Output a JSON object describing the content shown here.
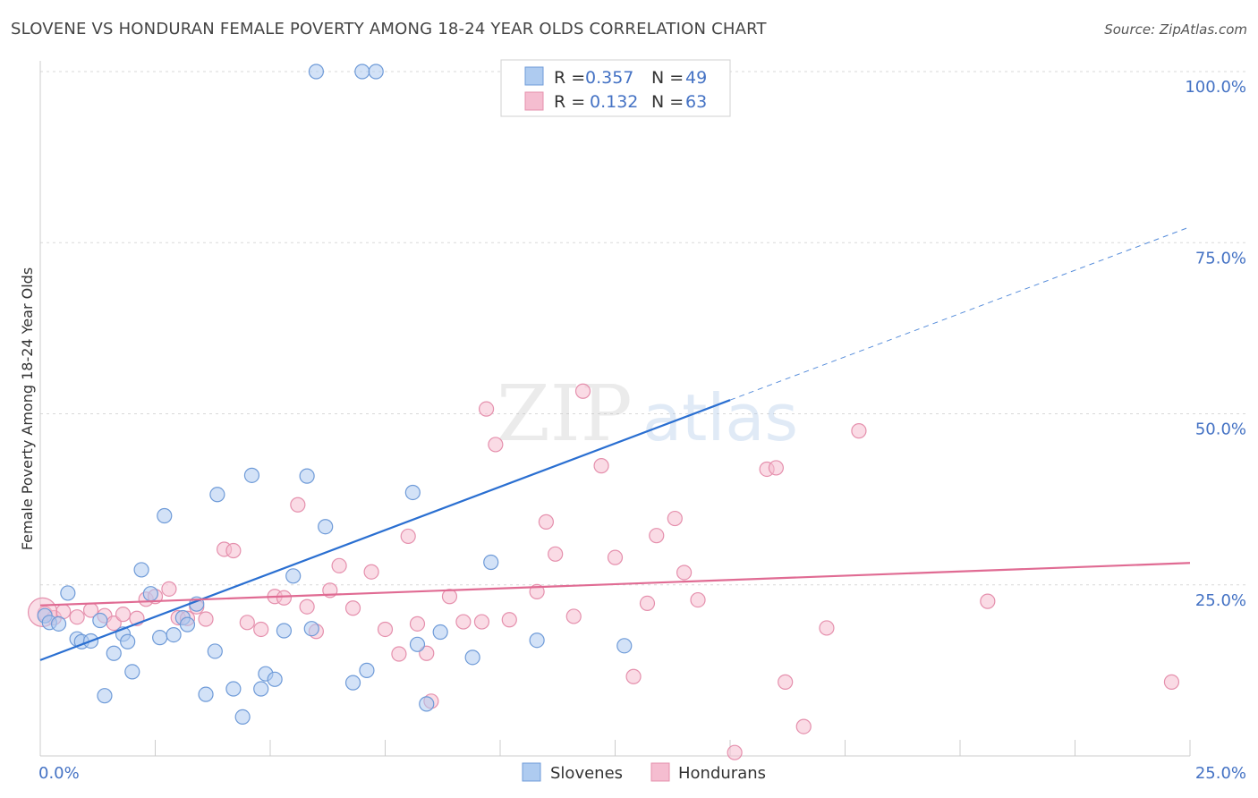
{
  "title": "SLOVENE VS HONDURAN FEMALE POVERTY AMONG 18-24 YEAR OLDS CORRELATION CHART",
  "source": "Source: ZipAtlas.com",
  "watermark": {
    "part1": "ZIP",
    "part2": "atlas"
  },
  "colors": {
    "blue": "#4472c4",
    "blue_fill": "#aecbf0",
    "blue_line": "#2a6fd1",
    "pink": "#e06b93",
    "pink_fill": "#f5bdd0",
    "grid": "#d9d9d9"
  },
  "chart_data": {
    "type": "scatter",
    "title": "SLOVENE VS HONDURAN FEMALE POVERTY AMONG 18-24 YEAR OLDS CORRELATION CHART",
    "xlabel": "",
    "ylabel": "Female Poverty Among 18-24 Year Olds",
    "xlim": [
      0,
      25
    ],
    "ylim": [
      0,
      100
    ],
    "x_tick_labels": [
      "0.0%",
      "25.0%"
    ],
    "y_tick_labels": [
      "25.0%",
      "50.0%",
      "75.0%",
      "100.0%"
    ],
    "y_ticks": [
      25,
      50,
      75,
      100
    ],
    "grid": true,
    "legend_position": "top-center",
    "stats": [
      {
        "r_label": "R =",
        "r": "0.357",
        "n_label": "N =",
        "n": "49"
      },
      {
        "r_label": "R =",
        "r": "0.132",
        "n_label": "N =",
        "n": "63"
      }
    ],
    "series": [
      {
        "name": "Slovenes",
        "color": "#4472c4",
        "trend": {
          "x": [
            0,
            15
          ],
          "y": [
            14.0,
            52.0
          ],
          "dashed_to": [
            25,
            77.3
          ]
        },
        "points": [
          [
            0.1,
            20.5
          ],
          [
            0.2,
            19.5
          ],
          [
            0.4,
            19.3
          ],
          [
            0.6,
            23.8
          ],
          [
            0.8,
            17.1
          ],
          [
            0.9,
            16.7
          ],
          [
            1.1,
            16.8
          ],
          [
            1.3,
            19.8
          ],
          [
            1.4,
            8.8
          ],
          [
            1.6,
            15.0
          ],
          [
            1.8,
            17.8
          ],
          [
            1.9,
            16.7
          ],
          [
            2.0,
            12.3
          ],
          [
            2.2,
            27.2
          ],
          [
            2.4,
            23.7
          ],
          [
            2.6,
            17.3
          ],
          [
            2.7,
            35.1
          ],
          [
            2.9,
            17.7
          ],
          [
            3.1,
            20.2
          ],
          [
            3.2,
            19.2
          ],
          [
            3.4,
            22.2
          ],
          [
            3.6,
            9.0
          ],
          [
            3.8,
            15.3
          ],
          [
            3.85,
            38.2
          ],
          [
            4.2,
            9.8
          ],
          [
            4.4,
            5.7
          ],
          [
            4.6,
            41.0
          ],
          [
            4.8,
            9.8
          ],
          [
            4.9,
            12.0
          ],
          [
            5.1,
            11.2
          ],
          [
            5.3,
            18.3
          ],
          [
            5.5,
            26.3
          ],
          [
            5.8,
            40.9
          ],
          [
            5.9,
            18.6
          ],
          [
            6.2,
            33.5
          ],
          [
            6.0,
            100
          ],
          [
            7.0,
            100
          ],
          [
            7.3,
            100
          ],
          [
            6.8,
            10.7
          ],
          [
            7.1,
            12.5
          ],
          [
            8.1,
            38.5
          ],
          [
            8.2,
            16.3
          ],
          [
            8.4,
            7.6
          ],
          [
            8.7,
            18.1
          ],
          [
            9.4,
            14.4
          ],
          [
            9.8,
            28.3
          ],
          [
            10.8,
            16.9
          ],
          [
            12.7,
            16.1
          ],
          [
            14.6,
            100
          ]
        ]
      },
      {
        "name": "Hondurans",
        "color": "#e06b93",
        "trend": {
          "x": [
            0,
            25
          ],
          "y": [
            22.0,
            28.2
          ]
        },
        "points": [
          [
            0.1,
            20.8
          ],
          [
            0.3,
            20.2
          ],
          [
            0.5,
            21.1
          ],
          [
            0.8,
            20.3
          ],
          [
            1.1,
            21.3
          ],
          [
            1.4,
            20.5
          ],
          [
            1.6,
            19.4
          ],
          [
            1.8,
            20.7
          ],
          [
            2.1,
            20.1
          ],
          [
            2.3,
            22.9
          ],
          [
            2.5,
            23.3
          ],
          [
            2.8,
            24.4
          ],
          [
            3.0,
            20.2
          ],
          [
            3.2,
            20.1
          ],
          [
            3.4,
            21.8
          ],
          [
            3.6,
            20.0
          ],
          [
            4.0,
            30.2
          ],
          [
            4.2,
            30.0
          ],
          [
            4.5,
            19.5
          ],
          [
            4.8,
            18.5
          ],
          [
            5.1,
            23.3
          ],
          [
            5.3,
            23.1
          ],
          [
            5.6,
            36.7
          ],
          [
            5.8,
            21.8
          ],
          [
            6.0,
            18.2
          ],
          [
            6.3,
            24.2
          ],
          [
            6.5,
            27.8
          ],
          [
            6.8,
            21.6
          ],
          [
            7.2,
            26.9
          ],
          [
            7.5,
            18.5
          ],
          [
            7.8,
            14.9
          ],
          [
            8.0,
            32.1
          ],
          [
            8.2,
            19.3
          ],
          [
            8.4,
            15.0
          ],
          [
            8.5,
            8.0
          ],
          [
            8.9,
            23.3
          ],
          [
            9.2,
            19.6
          ],
          [
            9.6,
            19.6
          ],
          [
            9.7,
            50.7
          ],
          [
            9.9,
            45.5
          ],
          [
            10.2,
            19.9
          ],
          [
            10.8,
            24.0
          ],
          [
            11.0,
            34.2
          ],
          [
            11.2,
            29.5
          ],
          [
            11.6,
            20.4
          ],
          [
            11.8,
            53.3
          ],
          [
            12.2,
            42.4
          ],
          [
            12.5,
            29.0
          ],
          [
            12.9,
            11.6
          ],
          [
            13.2,
            22.3
          ],
          [
            13.4,
            32.2
          ],
          [
            13.8,
            34.7
          ],
          [
            14.0,
            26.8
          ],
          [
            14.3,
            22.8
          ],
          [
            15.1,
            0.5
          ],
          [
            15.8,
            41.9
          ],
          [
            16.0,
            42.1
          ],
          [
            16.2,
            10.8
          ],
          [
            16.6,
            4.3
          ],
          [
            17.1,
            18.7
          ],
          [
            17.8,
            47.5
          ],
          [
            20.6,
            22.6
          ],
          [
            24.6,
            10.8
          ]
        ]
      }
    ]
  }
}
